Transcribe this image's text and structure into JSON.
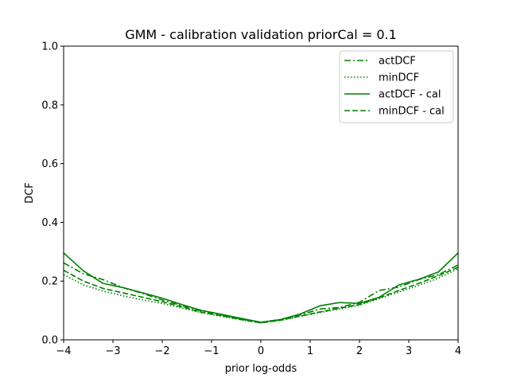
{
  "chart_data": {
    "type": "line",
    "title": "GMM - calibration validation priorCal = 0.1",
    "xlabel": "prior log-odds",
    "ylabel": "DCF",
    "xlim": [
      -4,
      4
    ],
    "ylim": [
      0,
      1
    ],
    "xticks": [
      -4,
      -3,
      -2,
      -1,
      0,
      1,
      2,
      3,
      4
    ],
    "xtick_labels": [
      "−4",
      "−3",
      "−2",
      "−1",
      "0",
      "1",
      "2",
      "3",
      "4"
    ],
    "yticks": [
      0.0,
      0.2,
      0.4,
      0.6,
      0.8,
      1.0
    ],
    "ytick_labels": [
      "0.0",
      "0.2",
      "0.4",
      "0.6",
      "0.8",
      "1.0"
    ],
    "grid": false,
    "legend_position": "top-right",
    "color": "#008000",
    "x": [
      -4.0,
      -3.6,
      -3.2,
      -2.8,
      -2.4,
      -2.0,
      -1.6,
      -1.2,
      -0.8,
      -0.4,
      0.0,
      0.4,
      0.8,
      1.2,
      1.6,
      2.0,
      2.4,
      2.8,
      3.2,
      3.6,
      4.0
    ],
    "series": [
      {
        "name": "actDCF",
        "linestyle": "dashdot",
        "values": [
          0.262,
          0.225,
          0.205,
          0.178,
          0.158,
          0.136,
          0.116,
          0.098,
          0.085,
          0.071,
          0.06,
          0.069,
          0.085,
          0.105,
          0.11,
          0.128,
          0.168,
          0.18,
          0.205,
          0.222,
          0.255
        ]
      },
      {
        "name": "minDCF",
        "linestyle": "dotted",
        "values": [
          0.222,
          0.187,
          0.166,
          0.15,
          0.136,
          0.124,
          0.108,
          0.092,
          0.08,
          0.068,
          0.057,
          0.066,
          0.08,
          0.093,
          0.105,
          0.118,
          0.14,
          0.163,
          0.185,
          0.21,
          0.242
        ]
      },
      {
        "name": "actDCF - cal",
        "linestyle": "solid",
        "values": [
          0.296,
          0.235,
          0.192,
          0.178,
          0.16,
          0.142,
          0.12,
          0.1,
          0.087,
          0.073,
          0.06,
          0.069,
          0.088,
          0.116,
          0.127,
          0.124,
          0.145,
          0.187,
          0.206,
          0.231,
          0.296
        ]
      },
      {
        "name": "minDCF - cal",
        "linestyle": "dashed",
        "values": [
          0.237,
          0.2,
          0.175,
          0.16,
          0.145,
          0.13,
          0.112,
          0.094,
          0.082,
          0.069,
          0.058,
          0.067,
          0.081,
          0.095,
          0.108,
          0.12,
          0.143,
          0.168,
          0.192,
          0.218,
          0.247
        ]
      }
    ]
  }
}
